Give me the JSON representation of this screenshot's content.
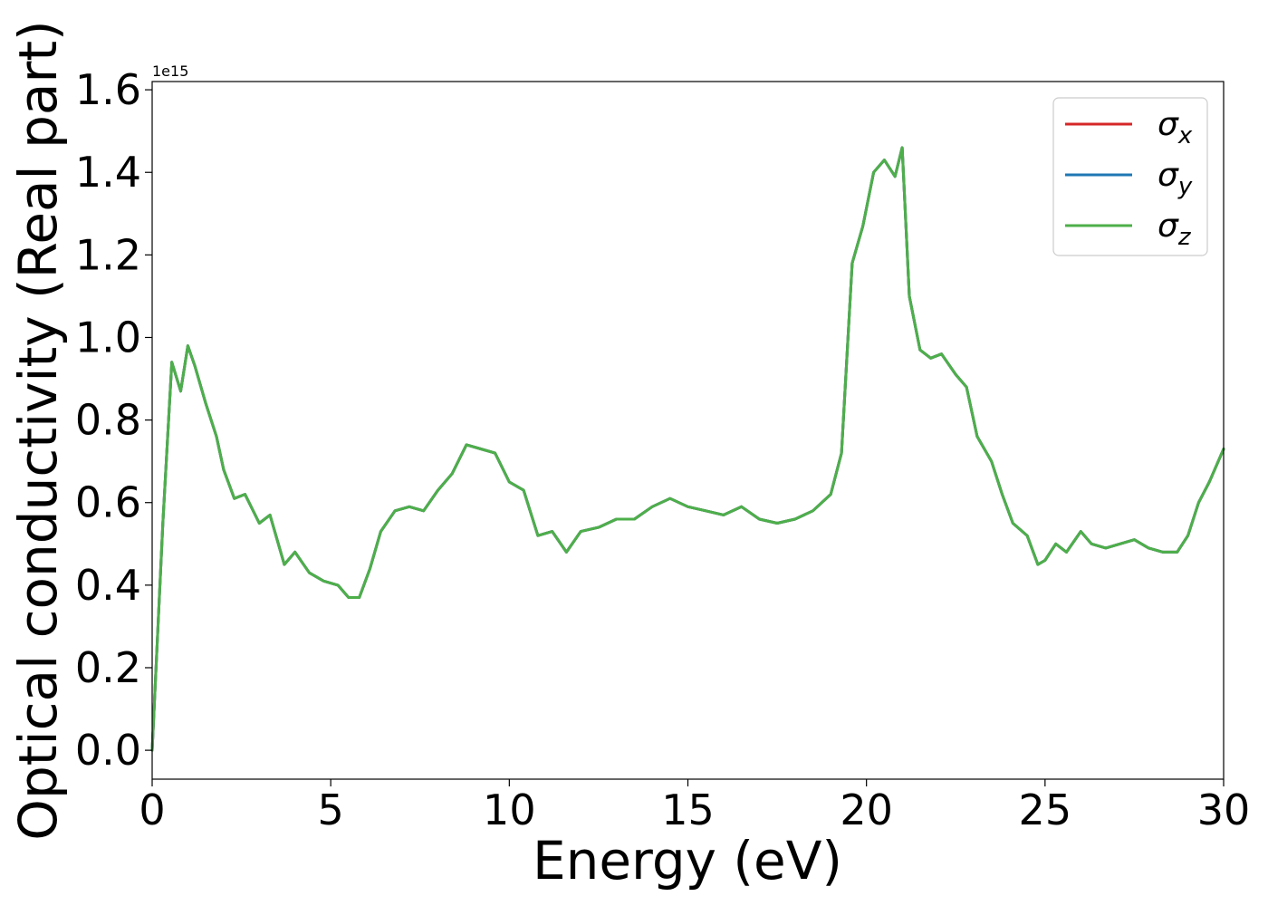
{
  "chart_data": {
    "type": "line",
    "xlabel": "Energy (eV)",
    "ylabel": "Optical conductivity (Real part)",
    "offset_text": "1e15",
    "xlim": [
      0,
      30
    ],
    "ylim": [
      -0.07,
      1.62
    ],
    "x_ticks": [
      "0",
      "5",
      "10",
      "15",
      "20",
      "25",
      "30"
    ],
    "y_ticks": [
      "0.0",
      "0.2",
      "0.4",
      "0.6",
      "0.8",
      "1.0",
      "1.2",
      "1.4",
      "1.6"
    ],
    "grid": false,
    "legend_position": "top-right",
    "series": [
      {
        "name": "σx",
        "symbol": "σ",
        "subscript": "x",
        "color": "#d62728",
        "x": [
          0,
          0.3,
          0.55,
          0.8,
          1.0,
          1.2,
          1.5,
          1.8,
          2.0,
          2.3,
          2.6,
          3.0,
          3.3,
          3.7,
          4.0,
          4.4,
          4.8,
          5.2,
          5.5,
          5.8,
          6.1,
          6.4,
          6.8,
          7.2,
          7.6,
          8.0,
          8.4,
          8.8,
          9.2,
          9.6,
          10.0,
          10.4,
          10.8,
          11.2,
          11.6,
          12.0,
          12.5,
          13.0,
          13.5,
          14.0,
          14.5,
          15.0,
          15.5,
          16.0,
          16.5,
          17.0,
          17.5,
          18.0,
          18.5,
          19.0,
          19.3,
          19.6,
          19.9,
          20.2,
          20.5,
          20.8,
          21.0,
          21.2,
          21.5,
          21.8,
          22.1,
          22.5,
          22.8,
          23.1,
          23.5,
          23.8,
          24.1,
          24.5,
          24.8,
          25.0,
          25.3,
          25.6,
          26.0,
          26.3,
          26.7,
          27.1,
          27.5,
          27.9,
          28.3,
          28.7,
          29.0,
          29.3,
          29.6,
          30.0
        ],
        "y": [
          0.0,
          0.55,
          0.94,
          0.87,
          0.98,
          0.93,
          0.84,
          0.76,
          0.68,
          0.61,
          0.62,
          0.55,
          0.57,
          0.45,
          0.48,
          0.43,
          0.41,
          0.4,
          0.37,
          0.37,
          0.44,
          0.53,
          0.58,
          0.59,
          0.58,
          0.63,
          0.67,
          0.74,
          0.73,
          0.72,
          0.65,
          0.63,
          0.52,
          0.53,
          0.48,
          0.53,
          0.54,
          0.56,
          0.56,
          0.59,
          0.61,
          0.59,
          0.58,
          0.57,
          0.59,
          0.56,
          0.55,
          0.56,
          0.58,
          0.62,
          0.72,
          1.18,
          1.27,
          1.4,
          1.43,
          1.39,
          1.46,
          1.1,
          0.97,
          0.95,
          0.96,
          0.91,
          0.88,
          0.76,
          0.7,
          0.62,
          0.55,
          0.52,
          0.45,
          0.46,
          0.5,
          0.48,
          0.53,
          0.5,
          0.49,
          0.5,
          0.51,
          0.49,
          0.48,
          0.48,
          0.52,
          0.6,
          0.65,
          0.73
        ]
      },
      {
        "name": "σy",
        "symbol": "σ",
        "subscript": "y",
        "color": "#1f77b4",
        "x": [
          0,
          0.3,
          0.55,
          0.8,
          1.0,
          1.2,
          1.5,
          1.8,
          2.0,
          2.3,
          2.6,
          3.0,
          3.3,
          3.7,
          4.0,
          4.4,
          4.8,
          5.2,
          5.5,
          5.8,
          6.1,
          6.4,
          6.8,
          7.2,
          7.6,
          8.0,
          8.4,
          8.8,
          9.2,
          9.6,
          10.0,
          10.4,
          10.8,
          11.2,
          11.6,
          12.0,
          12.5,
          13.0,
          13.5,
          14.0,
          14.5,
          15.0,
          15.5,
          16.0,
          16.5,
          17.0,
          17.5,
          18.0,
          18.5,
          19.0,
          19.3,
          19.6,
          19.9,
          20.2,
          20.5,
          20.8,
          21.0,
          21.2,
          21.5,
          21.8,
          22.1,
          22.5,
          22.8,
          23.1,
          23.5,
          23.8,
          24.1,
          24.5,
          24.8,
          25.0,
          25.3,
          25.6,
          26.0,
          26.3,
          26.7,
          27.1,
          27.5,
          27.9,
          28.3,
          28.7,
          29.0,
          29.3,
          29.6,
          30.0
        ],
        "y": [
          0.0,
          0.55,
          0.94,
          0.87,
          0.98,
          0.93,
          0.84,
          0.76,
          0.68,
          0.61,
          0.62,
          0.55,
          0.57,
          0.45,
          0.48,
          0.43,
          0.41,
          0.4,
          0.37,
          0.37,
          0.44,
          0.53,
          0.58,
          0.59,
          0.58,
          0.63,
          0.67,
          0.74,
          0.73,
          0.72,
          0.65,
          0.63,
          0.52,
          0.53,
          0.48,
          0.53,
          0.54,
          0.56,
          0.56,
          0.59,
          0.61,
          0.59,
          0.58,
          0.57,
          0.59,
          0.56,
          0.55,
          0.56,
          0.58,
          0.62,
          0.72,
          1.18,
          1.27,
          1.4,
          1.43,
          1.39,
          1.46,
          1.1,
          0.97,
          0.95,
          0.96,
          0.91,
          0.88,
          0.76,
          0.7,
          0.62,
          0.55,
          0.52,
          0.45,
          0.46,
          0.5,
          0.48,
          0.53,
          0.5,
          0.49,
          0.5,
          0.51,
          0.49,
          0.48,
          0.48,
          0.52,
          0.6,
          0.65,
          0.73
        ]
      },
      {
        "name": "σz",
        "symbol": "σ",
        "subscript": "z",
        "color": "#4daf4a",
        "x": [
          0,
          0.3,
          0.55,
          0.8,
          1.0,
          1.2,
          1.5,
          1.8,
          2.0,
          2.3,
          2.6,
          3.0,
          3.3,
          3.7,
          4.0,
          4.4,
          4.8,
          5.2,
          5.5,
          5.8,
          6.1,
          6.4,
          6.8,
          7.2,
          7.6,
          8.0,
          8.4,
          8.8,
          9.2,
          9.6,
          10.0,
          10.4,
          10.8,
          11.2,
          11.6,
          12.0,
          12.5,
          13.0,
          13.5,
          14.0,
          14.5,
          15.0,
          15.5,
          16.0,
          16.5,
          17.0,
          17.5,
          18.0,
          18.5,
          19.0,
          19.3,
          19.6,
          19.9,
          20.2,
          20.5,
          20.8,
          21.0,
          21.2,
          21.5,
          21.8,
          22.1,
          22.5,
          22.8,
          23.1,
          23.5,
          23.8,
          24.1,
          24.5,
          24.8,
          25.0,
          25.3,
          25.6,
          26.0,
          26.3,
          26.7,
          27.1,
          27.5,
          27.9,
          28.3,
          28.7,
          29.0,
          29.3,
          29.6,
          30.0
        ],
        "y": [
          0.0,
          0.55,
          0.94,
          0.87,
          0.98,
          0.93,
          0.84,
          0.76,
          0.68,
          0.61,
          0.62,
          0.55,
          0.57,
          0.45,
          0.48,
          0.43,
          0.41,
          0.4,
          0.37,
          0.37,
          0.44,
          0.53,
          0.58,
          0.59,
          0.58,
          0.63,
          0.67,
          0.74,
          0.73,
          0.72,
          0.65,
          0.63,
          0.52,
          0.53,
          0.48,
          0.53,
          0.54,
          0.56,
          0.56,
          0.59,
          0.61,
          0.59,
          0.58,
          0.57,
          0.59,
          0.56,
          0.55,
          0.56,
          0.58,
          0.62,
          0.72,
          1.18,
          1.27,
          1.4,
          1.43,
          1.39,
          1.46,
          1.1,
          0.97,
          0.95,
          0.96,
          0.91,
          0.88,
          0.76,
          0.7,
          0.62,
          0.55,
          0.52,
          0.45,
          0.46,
          0.5,
          0.48,
          0.53,
          0.5,
          0.49,
          0.5,
          0.51,
          0.49,
          0.48,
          0.48,
          0.52,
          0.6,
          0.65,
          0.73
        ]
      }
    ]
  }
}
